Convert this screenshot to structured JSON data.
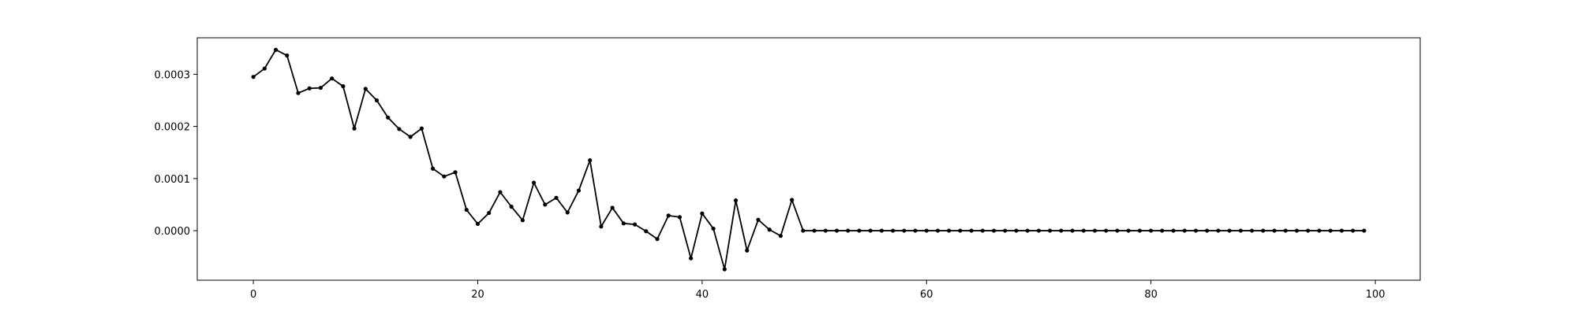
{
  "chart_data": {
    "type": "line",
    "title": "",
    "xlabel": "",
    "ylabel": "",
    "xlim": [
      -5,
      104
    ],
    "ylim": [
      -9.5e-05,
      0.00037
    ],
    "grid": false,
    "xticks": [
      0,
      20,
      40,
      60,
      80,
      100
    ],
    "xtick_labels": [
      "0",
      "20",
      "40",
      "60",
      "80",
      "100"
    ],
    "yticks": [
      0.0,
      0.0001,
      0.0002,
      0.0003
    ],
    "ytick_labels": [
      "0.0000",
      "0.0001",
      "0.0002",
      "0.0003"
    ],
    "series": [
      {
        "color": "#000000",
        "marker": "circle",
        "x": [
          0,
          1,
          2,
          3,
          4,
          5,
          6,
          7,
          8,
          9,
          10,
          11,
          12,
          13,
          14,
          15,
          16,
          17,
          18,
          19,
          20,
          21,
          22,
          23,
          24,
          25,
          26,
          27,
          28,
          29,
          30,
          31,
          32,
          33,
          34,
          35,
          36,
          37,
          38,
          39,
          40,
          41,
          42,
          43,
          44,
          45,
          46,
          47,
          48,
          49,
          50,
          51,
          52,
          53,
          54,
          55,
          56,
          57,
          58,
          59,
          60,
          61,
          62,
          63,
          64,
          65,
          66,
          67,
          68,
          69,
          70,
          71,
          72,
          73,
          74,
          75,
          76,
          77,
          78,
          79,
          80,
          81,
          82,
          83,
          84,
          85,
          86,
          87,
          88,
          89,
          90,
          91,
          92,
          93,
          94,
          95,
          96,
          97,
          98,
          99
        ],
        "values": [
          0.000295,
          0.000311,
          0.000347,
          0.000336,
          0.000264,
          0.000273,
          0.000274,
          0.000292,
          0.000277,
          0.000196,
          0.000272,
          0.00025,
          0.000217,
          0.000195,
          0.00018,
          0.000196,
          0.000119,
          0.000104,
          0.000112,
          4e-05,
          1.3e-05,
          3.4e-05,
          7.4e-05,
          4.6e-05,
          2e-05,
          9.2e-05,
          5e-05,
          6.3e-05,
          3.5e-05,
          7.7e-05,
          0.000135,
          8e-06,
          4.4e-05,
          1.4e-05,
          1.2e-05,
          -1e-06,
          -1.6e-05,
          2.9e-05,
          2.6e-05,
          -5.3e-05,
          3.3e-05,
          4e-06,
          -7.4e-05,
          5.8e-05,
          -3.8e-05,
          2.1e-05,
          2e-06,
          -1e-05,
          5.9e-05,
          0.0,
          0.0,
          0.0,
          0.0,
          0.0,
          0.0,
          0.0,
          0.0,
          0.0,
          0.0,
          0.0,
          0.0,
          0.0,
          0.0,
          0.0,
          0.0,
          0.0,
          0.0,
          0.0,
          0.0,
          0.0,
          0.0,
          0.0,
          0.0,
          0.0,
          0.0,
          0.0,
          0.0,
          0.0,
          0.0,
          0.0,
          0.0,
          0.0,
          0.0,
          0.0,
          0.0,
          0.0,
          0.0,
          0.0,
          0.0,
          0.0,
          0.0,
          0.0,
          0.0,
          0.0,
          0.0,
          0.0,
          0.0,
          0.0,
          0.0,
          0.0
        ]
      }
    ]
  }
}
